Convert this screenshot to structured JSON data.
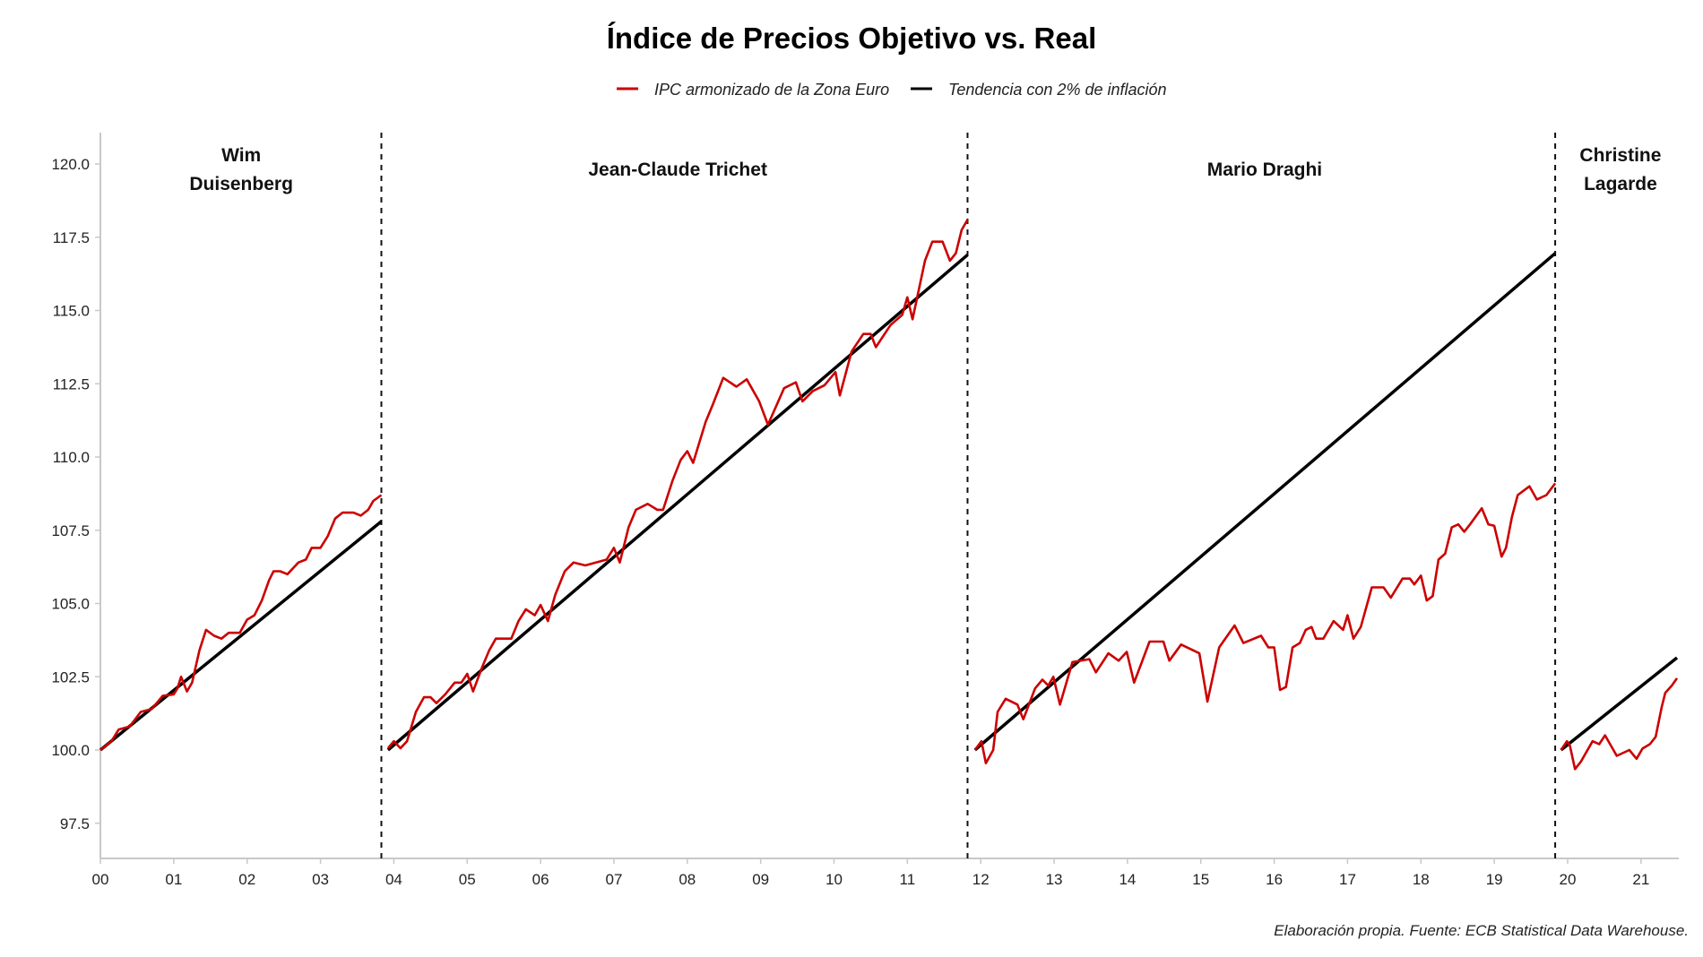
{
  "chart_data": {
    "type": "line",
    "title": "Índice de Precios Objetivo vs. Real",
    "xlabel": "",
    "ylabel": "",
    "caption": "Elaboración propia. Fuente: ECB Statistical Data Warehouse.",
    "legend_position": "top-center",
    "grid": false,
    "xlim": [
      0,
      21.5
    ],
    "ylim": [
      96.5,
      121
    ],
    "x_units": "years since 2000",
    "x_ticks": [
      0,
      1,
      2,
      3,
      4,
      5,
      6,
      7,
      8,
      9,
      10,
      11,
      12,
      13,
      14,
      15,
      16,
      17,
      18,
      19,
      20,
      21
    ],
    "x_tick_labels": [
      "00",
      "01",
      "02",
      "03",
      "04",
      "05",
      "06",
      "07",
      "08",
      "09",
      "10",
      "11",
      "12",
      "13",
      "14",
      "15",
      "16",
      "17",
      "18",
      "19",
      "20",
      "21"
    ],
    "y_ticks": [
      97.5,
      100.0,
      102.5,
      105.0,
      107.5,
      110.0,
      112.5,
      115.0,
      117.5,
      120.0
    ],
    "y_tick_labels": [
      "97.5",
      "100.0",
      "102.5",
      "105.0",
      "107.5",
      "110.0",
      "112.5",
      "115.0",
      "117.5",
      "120.0"
    ],
    "legend": [
      {
        "name": "IPC armonizado de la Zona Euro",
        "color": "#cc0000"
      },
      {
        "name": "Tendencia con 2% de inflación",
        "color": "#000000"
      }
    ],
    "period_dividers": [
      3.83,
      11.82,
      19.83
    ],
    "periods": [
      {
        "president": [
          "Wim",
          "Duisenberg"
        ],
        "start": 0.0,
        "end": 3.83,
        "label_x": 1.92,
        "actual": [
          [
            0.0,
            100.0
          ],
          [
            0.15,
            100.3
          ],
          [
            0.25,
            100.7
          ],
          [
            0.4,
            100.8
          ],
          [
            0.55,
            101.3
          ],
          [
            0.7,
            101.4
          ],
          [
            0.85,
            101.85
          ],
          [
            1.0,
            101.9
          ],
          [
            1.05,
            102.1
          ],
          [
            1.1,
            102.5
          ],
          [
            1.18,
            102.0
          ],
          [
            1.25,
            102.3
          ],
          [
            1.35,
            103.4
          ],
          [
            1.44,
            104.1
          ],
          [
            1.55,
            103.9
          ],
          [
            1.65,
            103.8
          ],
          [
            1.75,
            104.0
          ],
          [
            1.9,
            104.0
          ],
          [
            2.0,
            104.45
          ],
          [
            2.1,
            104.6
          ],
          [
            2.2,
            105.1
          ],
          [
            2.3,
            105.8
          ],
          [
            2.36,
            106.1
          ],
          [
            2.45,
            106.1
          ],
          [
            2.55,
            106.0
          ],
          [
            2.7,
            106.4
          ],
          [
            2.8,
            106.5
          ],
          [
            2.88,
            106.9
          ],
          [
            3.0,
            106.9
          ],
          [
            3.1,
            107.3
          ],
          [
            3.2,
            107.9
          ],
          [
            3.3,
            108.1
          ],
          [
            3.45,
            108.1
          ],
          [
            3.55,
            108.0
          ],
          [
            3.65,
            108.2
          ],
          [
            3.72,
            108.5
          ],
          [
            3.83,
            108.7
          ]
        ],
        "target": [
          [
            0.0,
            100.0
          ],
          [
            3.83,
            107.8
          ]
        ]
      },
      {
        "president": [
          "Jean-Claude Trichet"
        ],
        "start": 3.92,
        "end": 11.82,
        "label_x": 7.87,
        "actual": [
          [
            3.92,
            100.06
          ],
          [
            4.0,
            100.3
          ],
          [
            4.09,
            100.06
          ],
          [
            4.18,
            100.3
          ],
          [
            4.3,
            101.3
          ],
          [
            4.41,
            101.8
          ],
          [
            4.5,
            101.8
          ],
          [
            4.58,
            101.6
          ],
          [
            4.7,
            101.9
          ],
          [
            4.83,
            102.3
          ],
          [
            4.92,
            102.3
          ],
          [
            5.0,
            102.6
          ],
          [
            5.08,
            102.0
          ],
          [
            5.2,
            102.8
          ],
          [
            5.3,
            103.4
          ],
          [
            5.39,
            103.8
          ],
          [
            5.6,
            103.8
          ],
          [
            5.7,
            104.4
          ],
          [
            5.8,
            104.8
          ],
          [
            5.92,
            104.6
          ],
          [
            6.0,
            104.95
          ],
          [
            6.1,
            104.4
          ],
          [
            6.2,
            105.3
          ],
          [
            6.33,
            106.1
          ],
          [
            6.45,
            106.4
          ],
          [
            6.61,
            106.3
          ],
          [
            6.9,
            106.5
          ],
          [
            7.0,
            106.9
          ],
          [
            7.08,
            106.4
          ],
          [
            7.2,
            107.6
          ],
          [
            7.3,
            108.2
          ],
          [
            7.46,
            108.4
          ],
          [
            7.59,
            108.2
          ],
          [
            7.67,
            108.2
          ],
          [
            7.8,
            109.2
          ],
          [
            7.91,
            109.9
          ],
          [
            8.0,
            110.2
          ],
          [
            8.08,
            109.8
          ],
          [
            8.25,
            111.2
          ],
          [
            8.35,
            111.8
          ],
          [
            8.49,
            112.7
          ],
          [
            8.67,
            112.4
          ],
          [
            8.81,
            112.65
          ],
          [
            8.98,
            111.9
          ],
          [
            9.1,
            111.1
          ],
          [
            9.32,
            112.35
          ],
          [
            9.48,
            112.55
          ],
          [
            9.57,
            111.9
          ],
          [
            9.71,
            112.25
          ],
          [
            9.87,
            112.45
          ],
          [
            10.02,
            112.9
          ],
          [
            10.08,
            112.1
          ],
          [
            10.24,
            113.6
          ],
          [
            10.4,
            114.2
          ],
          [
            10.5,
            114.2
          ],
          [
            10.57,
            113.75
          ],
          [
            10.77,
            114.5
          ],
          [
            10.93,
            114.85
          ],
          [
            11.0,
            115.45
          ],
          [
            11.07,
            114.7
          ],
          [
            11.24,
            116.7
          ],
          [
            11.34,
            117.35
          ],
          [
            11.48,
            117.35
          ],
          [
            11.58,
            116.7
          ],
          [
            11.66,
            116.95
          ],
          [
            11.74,
            117.75
          ],
          [
            11.82,
            118.1
          ]
        ],
        "target": [
          [
            3.92,
            100.0
          ],
          [
            11.82,
            116.9
          ]
        ]
      },
      {
        "president": [
          "Mario Draghi"
        ],
        "start": 11.92,
        "end": 19.83,
        "label_x": 15.87,
        "actual": [
          [
            11.92,
            100.0
          ],
          [
            12.01,
            100.3
          ],
          [
            12.07,
            99.55
          ],
          [
            12.17,
            100.0
          ],
          [
            12.23,
            101.3
          ],
          [
            12.34,
            101.75
          ],
          [
            12.5,
            101.55
          ],
          [
            12.58,
            101.05
          ],
          [
            12.74,
            102.1
          ],
          [
            12.84,
            102.4
          ],
          [
            12.92,
            102.2
          ],
          [
            12.99,
            102.5
          ],
          [
            13.08,
            101.55
          ],
          [
            13.25,
            103.0
          ],
          [
            13.48,
            103.1
          ],
          [
            13.57,
            102.65
          ],
          [
            13.74,
            103.3
          ],
          [
            13.88,
            103.05
          ],
          [
            13.99,
            103.35
          ],
          [
            14.09,
            102.3
          ],
          [
            14.3,
            103.7
          ],
          [
            14.49,
            103.7
          ],
          [
            14.57,
            103.05
          ],
          [
            14.73,
            103.6
          ],
          [
            14.98,
            103.3
          ],
          [
            15.09,
            101.65
          ],
          [
            15.25,
            103.5
          ],
          [
            15.46,
            104.25
          ],
          [
            15.58,
            103.65
          ],
          [
            15.82,
            103.9
          ],
          [
            15.92,
            103.5
          ],
          [
            16.0,
            103.5
          ],
          [
            16.08,
            102.05
          ],
          [
            16.16,
            102.15
          ],
          [
            16.25,
            103.5
          ],
          [
            16.35,
            103.65
          ],
          [
            16.43,
            104.1
          ],
          [
            16.51,
            104.2
          ],
          [
            16.57,
            103.8
          ],
          [
            16.67,
            103.8
          ],
          [
            16.81,
            104.4
          ],
          [
            16.94,
            104.1
          ],
          [
            17.0,
            104.6
          ],
          [
            17.08,
            103.8
          ],
          [
            17.18,
            104.2
          ],
          [
            17.33,
            105.55
          ],
          [
            17.49,
            105.55
          ],
          [
            17.59,
            105.2
          ],
          [
            17.75,
            105.85
          ],
          [
            17.85,
            105.85
          ],
          [
            17.91,
            105.65
          ],
          [
            18.0,
            105.95
          ],
          [
            18.08,
            105.1
          ],
          [
            18.16,
            105.25
          ],
          [
            18.24,
            106.5
          ],
          [
            18.33,
            106.7
          ],
          [
            18.42,
            107.6
          ],
          [
            18.51,
            107.7
          ],
          [
            18.59,
            107.45
          ],
          [
            18.67,
            107.7
          ],
          [
            18.83,
            108.25
          ],
          [
            18.92,
            107.7
          ],
          [
            19.0,
            107.65
          ],
          [
            19.1,
            106.6
          ],
          [
            19.16,
            106.9
          ],
          [
            19.24,
            107.95
          ],
          [
            19.32,
            108.7
          ],
          [
            19.48,
            109.0
          ],
          [
            19.58,
            108.55
          ],
          [
            19.71,
            108.7
          ],
          [
            19.83,
            109.1
          ]
        ],
        "target": [
          [
            11.92,
            100.0
          ],
          [
            19.83,
            116.95
          ]
        ]
      },
      {
        "president": [
          "Christine",
          "Lagarde"
        ],
        "start": 19.91,
        "end": 21.49,
        "label_x": 20.72,
        "actual": [
          [
            19.91,
            100.0
          ],
          [
            19.99,
            100.3
          ],
          [
            20.03,
            100.15
          ],
          [
            20.1,
            99.35
          ],
          [
            20.18,
            99.6
          ],
          [
            20.34,
            100.3
          ],
          [
            20.43,
            100.2
          ],
          [
            20.51,
            100.5
          ],
          [
            20.67,
            99.8
          ],
          [
            20.84,
            100.0
          ],
          [
            20.94,
            99.7
          ],
          [
            21.02,
            100.05
          ],
          [
            21.12,
            100.2
          ],
          [
            21.2,
            100.45
          ],
          [
            21.28,
            101.45
          ],
          [
            21.33,
            101.95
          ],
          [
            21.42,
            102.2
          ],
          [
            21.49,
            102.45
          ]
        ],
        "target": [
          [
            19.91,
            100.0
          ],
          [
            21.49,
            103.15
          ]
        ]
      }
    ]
  }
}
